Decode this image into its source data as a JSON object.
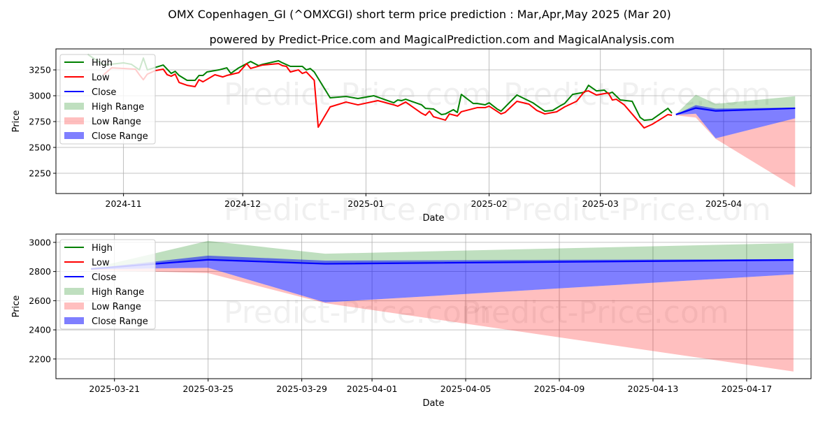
{
  "title": "OMX Copenhagen_GI (^OMXCGI) short term price prediction : Mar,Apr,May 2025 (Mar 20)",
  "subtitle": "powered by Predict-Price.com and MagicalPrediction.com and MagicalAnalysis.com",
  "watermark": "Predict-Price.com",
  "colors": {
    "high": "#008000",
    "low": "#ff0000",
    "close": "#0000ff",
    "high_range": "rgba(0,128,0,0.25)",
    "low_range": "rgba(255,0,0,0.25)",
    "close_range": "rgba(0,0,255,0.5)"
  },
  "legend": [
    "High",
    "Low",
    "Close",
    "High Range",
    "Low Range",
    "Close Range"
  ],
  "chart_data": [
    {
      "type": "line",
      "title": "",
      "xlabel": "Date",
      "ylabel": "Price",
      "xlim": [
        "2024-10-15",
        "2025-04-23"
      ],
      "ylim": [
        2054,
        3453
      ],
      "yticks": [
        2250,
        2500,
        2750,
        3000,
        3250
      ],
      "xticks": [
        "2024-11",
        "2024-12",
        "2025-01",
        "2025-02",
        "2025-03",
        "2025-04"
      ],
      "grid": true,
      "legend_position": "top-left",
      "series": [
        {
          "name": "High",
          "points": [
            [
              "2024-10-23",
              3400
            ],
            [
              "2024-10-27",
              3297
            ],
            [
              "2024-11-01",
              3318
            ],
            [
              "2024-11-03",
              3304
            ],
            [
              "2024-11-05",
              3250
            ],
            [
              "2024-11-06",
              3365
            ],
            [
              "2024-11-07",
              3250
            ],
            [
              "2024-11-11",
              3297
            ],
            [
              "2024-11-13",
              3216
            ],
            [
              "2024-11-14",
              3236
            ],
            [
              "2024-11-15",
              3196
            ],
            [
              "2024-11-17",
              3149
            ],
            [
              "2024-11-19",
              3149
            ],
            [
              "2024-11-20",
              3196
            ],
            [
              "2024-11-21",
              3196
            ],
            [
              "2024-11-22",
              3230
            ],
            [
              "2024-11-25",
              3250
            ],
            [
              "2024-11-27",
              3270
            ],
            [
              "2024-11-28",
              3216
            ],
            [
              "2024-11-30",
              3270
            ],
            [
              "2024-12-03",
              3331
            ],
            [
              "2024-12-05",
              3291
            ],
            [
              "2024-12-06",
              3304
            ],
            [
              "2024-12-10",
              3338
            ],
            [
              "2024-12-11",
              3318
            ],
            [
              "2024-12-13",
              3284
            ],
            [
              "2024-12-16",
              3284
            ],
            [
              "2024-12-17",
              3250
            ],
            [
              "2024-12-18",
              3263
            ],
            [
              "2024-12-19",
              3230
            ],
            [
              "2024-12-23",
              2980
            ],
            [
              "2024-12-27",
              2993
            ],
            [
              "2024-12-30",
              2973
            ],
            [
              "2025-01-03",
              3000
            ],
            [
              "2025-01-08",
              2932
            ],
            [
              "2025-01-09",
              2959
            ],
            [
              "2025-01-10",
              2953
            ],
            [
              "2025-01-11",
              2966
            ],
            [
              "2025-01-15",
              2912
            ],
            [
              "2025-01-16",
              2878
            ],
            [
              "2025-01-18",
              2872
            ],
            [
              "2025-01-20",
              2818
            ],
            [
              "2025-01-21",
              2824
            ],
            [
              "2025-01-23",
              2865
            ],
            [
              "2025-01-24",
              2838
            ],
            [
              "2025-01-25",
              3013
            ],
            [
              "2025-01-28",
              2925
            ],
            [
              "2025-01-29",
              2925
            ],
            [
              "2025-01-31",
              2912
            ],
            [
              "2025-02-01",
              2932
            ],
            [
              "2025-02-03",
              2872
            ],
            [
              "2025-02-04",
              2851
            ],
            [
              "2025-02-08",
              3007
            ],
            [
              "2025-02-12",
              2932
            ],
            [
              "2025-02-15",
              2851
            ],
            [
              "2025-02-17",
              2858
            ],
            [
              "2025-02-19",
              2905
            ],
            [
              "2025-02-20",
              2925
            ],
            [
              "2025-02-22",
              3013
            ],
            [
              "2025-02-25",
              3034
            ],
            [
              "2025-02-26",
              3101
            ],
            [
              "2025-02-28",
              3047
            ],
            [
              "2025-03-02",
              3054
            ],
            [
              "2025-03-03",
              3020
            ],
            [
              "2025-03-04",
              3034
            ],
            [
              "2025-03-06",
              2959
            ],
            [
              "2025-03-09",
              2946
            ],
            [
              "2025-03-11",
              2790
            ],
            [
              "2025-03-12",
              2763
            ],
            [
              "2025-03-14",
              2770
            ],
            [
              "2025-03-16",
              2824
            ],
            [
              "2025-03-18",
              2878
            ],
            [
              "2025-03-19",
              2831
            ]
          ]
        },
        {
          "name": "Low",
          "points": [
            [
              "2024-10-27",
              3203
            ],
            [
              "2024-10-29",
              3270
            ],
            [
              "2024-11-01",
              3264
            ],
            [
              "2024-11-04",
              3257
            ],
            [
              "2024-11-05",
              3203
            ],
            [
              "2024-11-06",
              3155
            ],
            [
              "2024-11-07",
              3209
            ],
            [
              "2024-11-09",
              3243
            ],
            [
              "2024-11-11",
              3257
            ],
            [
              "2024-11-12",
              3203
            ],
            [
              "2024-11-13",
              3189
            ],
            [
              "2024-11-14",
              3209
            ],
            [
              "2024-11-15",
              3128
            ],
            [
              "2024-11-17",
              3101
            ],
            [
              "2024-11-19",
              3088
            ],
            [
              "2024-11-20",
              3155
            ],
            [
              "2024-11-21",
              3135
            ],
            [
              "2024-11-24",
              3203
            ],
            [
              "2024-11-26",
              3182
            ],
            [
              "2024-11-27",
              3196
            ],
            [
              "2024-11-30",
              3223
            ],
            [
              "2024-12-02",
              3311
            ],
            [
              "2024-12-03",
              3264
            ],
            [
              "2024-12-06",
              3297
            ],
            [
              "2024-12-10",
              3311
            ],
            [
              "2024-12-11",
              3291
            ],
            [
              "2024-12-12",
              3284
            ],
            [
              "2024-12-13",
              3230
            ],
            [
              "2024-12-15",
              3250
            ],
            [
              "2024-12-16",
              3216
            ],
            [
              "2024-12-17",
              3230
            ],
            [
              "2024-12-19",
              3149
            ],
            [
              "2024-12-20",
              2696
            ],
            [
              "2024-12-23",
              2892
            ],
            [
              "2024-12-27",
              2939
            ],
            [
              "2024-12-30",
              2912
            ],
            [
              "2025-01-04",
              2953
            ],
            [
              "2025-01-08",
              2912
            ],
            [
              "2025-01-09",
              2899
            ],
            [
              "2025-01-11",
              2939
            ],
            [
              "2025-01-13",
              2885
            ],
            [
              "2025-01-15",
              2831
            ],
            [
              "2025-01-16",
              2811
            ],
            [
              "2025-01-17",
              2851
            ],
            [
              "2025-01-18",
              2797
            ],
            [
              "2025-01-21",
              2764
            ],
            [
              "2025-01-22",
              2824
            ],
            [
              "2025-01-24",
              2804
            ],
            [
              "2025-01-25",
              2845
            ],
            [
              "2025-01-29",
              2885
            ],
            [
              "2025-01-31",
              2885
            ],
            [
              "2025-02-01",
              2899
            ],
            [
              "2025-02-04",
              2824
            ],
            [
              "2025-02-05",
              2838
            ],
            [
              "2025-02-08",
              2946
            ],
            [
              "2025-02-11",
              2919
            ],
            [
              "2025-02-13",
              2858
            ],
            [
              "2025-02-15",
              2824
            ],
            [
              "2025-02-18",
              2845
            ],
            [
              "2025-02-20",
              2892
            ],
            [
              "2025-02-23",
              2946
            ],
            [
              "2025-02-25",
              3041
            ],
            [
              "2025-02-26",
              3047
            ],
            [
              "2025-02-28",
              3007
            ],
            [
              "2025-03-03",
              3027
            ],
            [
              "2025-03-04",
              2959
            ],
            [
              "2025-03-05",
              2966
            ],
            [
              "2025-03-07",
              2912
            ],
            [
              "2025-03-12",
              2689
            ],
            [
              "2025-03-14",
              2723
            ],
            [
              "2025-03-16",
              2770
            ],
            [
              "2025-03-18",
              2818
            ],
            [
              "2025-03-19",
              2811
            ]
          ]
        }
      ],
      "forecast": "shared"
    },
    {
      "type": "area",
      "title": "",
      "xlabel": "Date",
      "ylabel": "Price",
      "xlim": [
        "2025-03-18T12:00:00",
        "2025-04-19T18:00:00"
      ],
      "ylim": [
        2065,
        3057
      ],
      "yticks": [
        2200,
        2400,
        2600,
        2800,
        3000
      ],
      "xticks": [
        "2025-03-21",
        "2025-03-25",
        "2025-03-29",
        "2025-04-01",
        "2025-04-05",
        "2025-04-09",
        "2025-04-13",
        "2025-04-17"
      ],
      "grid": true,
      "legend_position": "top-left",
      "series": [],
      "forecast": "shared"
    }
  ],
  "forecast": {
    "dates": [
      "2025-03-20",
      "2025-03-25",
      "2025-03-30",
      "2025-04-19"
    ],
    "close": [
      2818,
      2881,
      2853,
      2879
    ],
    "close_range_upper": [
      2820,
      2909,
      2875,
      2885
    ],
    "close_range_lower": [
      2815,
      2826,
      2588,
      2781
    ],
    "high_range_upper": [
      2822,
      3010,
      2922,
      2995
    ],
    "high_range_lower": [
      2818,
      2881,
      2853,
      2879
    ],
    "low_range_upper": [
      2815,
      2826,
      2588,
      2781
    ],
    "low_range_lower": [
      2810,
      2789,
      2583,
      2114
    ]
  }
}
